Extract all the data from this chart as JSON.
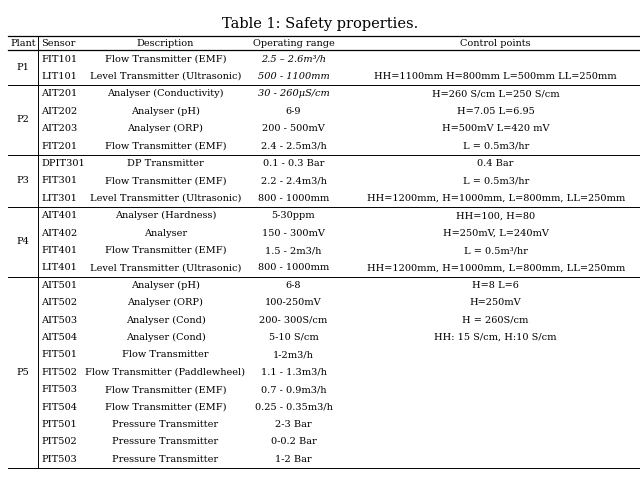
{
  "title": "Table 1: Safety properties.",
  "columns": [
    "Plant",
    "Sensor",
    "Description",
    "Operating range",
    "Control points"
  ],
  "rows": [
    {
      "plant": "P1",
      "sensor": "FIT101",
      "description": "Flow Transmitter (EMF)",
      "range": "2.5 – 2.6m³/h",
      "control": "",
      "italic_range": true
    },
    {
      "plant": "",
      "sensor": "LIT101",
      "description": "Level Transmitter (Ultrasonic)",
      "range": "500 - 1100mm",
      "control": "HH=1100mm H=800mm L=500mm LL=250mm",
      "italic_range": true
    },
    {
      "plant": "P2",
      "sensor": "AIT201",
      "description": "Analyser (Conductivity)",
      "range": "30 - 260μS/cm",
      "control": "H=260 S/cm L=250 S/cm",
      "italic_range": true
    },
    {
      "plant": "",
      "sensor": "AIT202",
      "description": "Analyser (pH)",
      "range": "6-9",
      "control": "H=7.05 L=6.95",
      "italic_range": false
    },
    {
      "plant": "",
      "sensor": "AIT203",
      "description": "Analyser (ORP)",
      "range": "200 - 500mV",
      "control": "H=500mV L=420 mV",
      "italic_range": false
    },
    {
      "plant": "",
      "sensor": "FIT201",
      "description": "Flow Transmitter (EMF)",
      "range": "2.4 - 2.5m3/h",
      "control": "L = 0.5m3/hr",
      "italic_range": false
    },
    {
      "plant": "P3",
      "sensor": "DPIT301",
      "description": "DP Transmitter",
      "range": "0.1 - 0.3 Bar",
      "control": "0.4 Bar",
      "italic_range": false
    },
    {
      "plant": "",
      "sensor": "FIT301",
      "description": "Flow Transmitter (EMF)",
      "range": "2.2 - 2.4m3/h",
      "control": "L = 0.5m3/hr",
      "italic_range": false
    },
    {
      "plant": "",
      "sensor": "LIT301",
      "description": "Level Transmitter (Ultrasonic)",
      "range": "800 - 1000mm",
      "control": "HH=1200mm, H=1000mm, L=800mm, LL=250mm",
      "italic_range": false
    },
    {
      "plant": "P4",
      "sensor": "AIT401",
      "description": "Analyser (Hardness)",
      "range": "5-30ppm",
      "control": "HH=100, H=80",
      "italic_range": false
    },
    {
      "plant": "",
      "sensor": "AIT402",
      "description": "Analyser",
      "range": "150 - 300mV",
      "control": "H=250mV, L=240mV",
      "italic_range": false
    },
    {
      "plant": "",
      "sensor": "FIT401",
      "description": "Flow Transmitter (EMF)",
      "range": "1.5 - 2m3/h",
      "control": "L = 0.5m³/hr",
      "italic_range": false
    },
    {
      "plant": "",
      "sensor": "LIT401",
      "description": "Level Transmitter (Ultrasonic)",
      "range": "800 - 1000mm",
      "control": "HH=1200mm, H=1000mm, L=800mm, LL=250mm",
      "italic_range": false
    },
    {
      "plant": "P5",
      "sensor": "AIT501",
      "description": "Analyser (pH)",
      "range": "6-8",
      "control": "H=8 L=6",
      "italic_range": false
    },
    {
      "plant": "",
      "sensor": "AIT502",
      "description": "Analyser (ORP)",
      "range": "100-250mV",
      "control": "H=250mV",
      "italic_range": false
    },
    {
      "plant": "",
      "sensor": "AIT503",
      "description": "Analyser (Cond)",
      "range": "200- 300S/cm",
      "control": "H = 260S/cm",
      "italic_range": false
    },
    {
      "plant": "",
      "sensor": "AIT504",
      "description": "Analyser (Cond)",
      "range": "5-10 S/cm",
      "control": "HH: 15 S/cm, H:10 S/cm",
      "italic_range": false
    },
    {
      "plant": "",
      "sensor": "FIT501",
      "description": "Flow Transmitter",
      "range": "1-2m3/h",
      "control": "",
      "italic_range": false
    },
    {
      "plant": "",
      "sensor": "FIT502",
      "description": "Flow Transmitter (Paddlewheel)",
      "range": "1.1 - 1.3m3/h",
      "control": "",
      "italic_range": false
    },
    {
      "plant": "",
      "sensor": "FIT503",
      "description": "Flow Transmitter (EMF)",
      "range": "0.7 - 0.9m3/h",
      "control": "",
      "italic_range": false
    },
    {
      "plant": "",
      "sensor": "FIT504",
      "description": "Flow Transmitter (EMF)",
      "range": "0.25 - 0.35m3/h",
      "control": "",
      "italic_range": false
    },
    {
      "plant": "",
      "sensor": "PIT501",
      "description": "Pressure Transmitter",
      "range": "2-3 Bar",
      "control": "",
      "italic_range": false
    },
    {
      "plant": "",
      "sensor": "PIT502",
      "description": "Pressure Transmitter",
      "range": "0-0.2 Bar",
      "control": "",
      "italic_range": false
    },
    {
      "plant": "",
      "sensor": "PIT503",
      "description": "Pressure Transmitter",
      "range": "1-2 Bar",
      "control": "",
      "italic_range": false
    }
  ],
  "section_starts": [
    0,
    2,
    6,
    9,
    13
  ],
  "bg_color": "#ffffff",
  "text_color": "#000000",
  "font_size": 7.0,
  "title_font_size": 10.5
}
